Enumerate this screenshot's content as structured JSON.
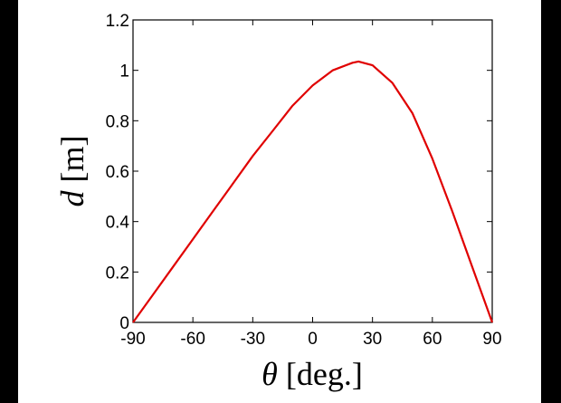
{
  "chart_data": {
    "type": "line",
    "title": "",
    "xlabel_symbol": "θ",
    "xlabel_unit": " [deg.]",
    "ylabel_symbol": "d",
    "ylabel_unit": " [m]",
    "xlim": [
      -90,
      90
    ],
    "ylim": [
      0,
      1.2
    ],
    "xticks": [
      -90,
      -60,
      -30,
      0,
      30,
      60,
      90
    ],
    "xtick_labels": [
      "-90",
      "-60",
      "-30",
      "0",
      "30",
      "60",
      "90"
    ],
    "yticks": [
      0,
      0.2,
      0.4,
      0.6,
      0.8,
      1,
      1.2
    ],
    "ytick_labels": [
      "0",
      "0.2",
      "0.4",
      "0.6",
      "0.8",
      "1",
      "1.2"
    ],
    "grid": false,
    "legend": "none",
    "series": [
      {
        "color": "#e00000",
        "x": [
          -90,
          -80,
          -70,
          -60,
          -50,
          -40,
          -30,
          -20,
          -10,
          0,
          10,
          20,
          23,
          30,
          40,
          50,
          60,
          70,
          80,
          90
        ],
        "y": [
          0,
          0.11,
          0.22,
          0.33,
          0.44,
          0.55,
          0.66,
          0.76,
          0.86,
          0.94,
          1.0,
          1.03,
          1.035,
          1.02,
          0.95,
          0.83,
          0.65,
          0.44,
          0.22,
          0
        ]
      }
    ]
  }
}
